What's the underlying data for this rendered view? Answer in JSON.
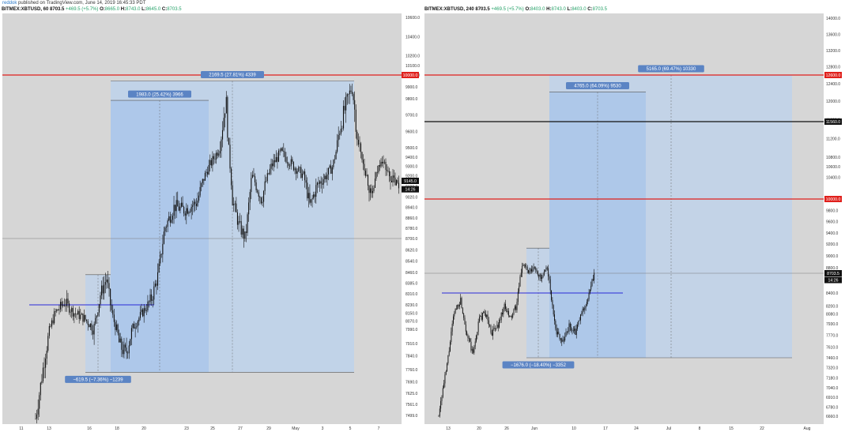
{
  "header": {
    "user": "reddok",
    "published": "published on TradingView.com, June 14, 2019 16:45:33 PDT"
  },
  "colors": {
    "chart_bg": "#d6d6d6",
    "candle": "#111111",
    "box_fill": "#bad2ee",
    "red_line": "#e0201c",
    "blue_line": "#2a2ad8",
    "label_bg": "#5b84c4",
    "black_line": "#111111",
    "gray_line": "#7a7a7a",
    "up_text": "#26a269"
  },
  "chart_data": [
    {
      "type": "line",
      "symbol": "BITMEX:XBTUSD, 60",
      "legend": {
        "symbol": "BITMEX:XBTUSD, 60",
        "last": "8703.5",
        "change": "+469.5 (+5.7%)",
        "o_label": "O:",
        "o": "8665.0",
        "h_label": "H:",
        "h": "8743.0",
        "l_label": "L:",
        "l": "8645.0",
        "c_label": "C:",
        "c": "8703.5"
      },
      "y_ticks": [
        "10600.0",
        "10400.0",
        "10200.0",
        "10100.0",
        "10000.0",
        "9900.0",
        "9800.0",
        "9700.0",
        "9600.0",
        "9500.0",
        "9400.0",
        "9300.0",
        "9200.0",
        "9100.0",
        "9020.0",
        "8940.0",
        "8860.0",
        "8780.0",
        "8700.0",
        "8620.0",
        "8540.0",
        "8460.0",
        "8385.0",
        "8310.0",
        "8230.0",
        "8150.0",
        "8070.0",
        "7990.0",
        "7910.0",
        "7840.0",
        "7760.0",
        "7690.0",
        "7625.0",
        "7561.0",
        "7499.0"
      ],
      "x_ticks": [
        "11",
        "13",
        "16",
        "18",
        "20",
        "23",
        "25",
        "27",
        "29",
        "May",
        "3",
        "5",
        "7"
      ],
      "price_badges": [
        {
          "text": "10000.0",
          "color": "#e0201c",
          "y": 10000
        },
        {
          "text": "9145.0",
          "color": "#111111",
          "y": 9145
        },
        {
          "text": "14:26",
          "color": "#111111",
          "y": 9080
        }
      ],
      "measure_labels": [
        {
          "text": "2169.5 (27.81%) 4339"
        },
        {
          "text": "1983.0 (25.42%) 3966"
        },
        {
          "text": "−619.5 (−7.36%) −1239"
        }
      ],
      "levels": {
        "red": 10000,
        "gray": 8700,
        "blue": 8230
      }
    },
    {
      "type": "line",
      "symbol": "BITMEX:XBTUSD, 240",
      "legend": {
        "symbol": "BITMEX:XBTUSD, 240",
        "last": "8703.5",
        "change": "+469.5 (+5.7%)",
        "o_label": "O:",
        "o": "8403.0",
        "h_label": "H:",
        "h": "8743.0",
        "l_label": "L:",
        "l": "8403.0",
        "c_label": "C:",
        "c": "8703.5"
      },
      "y_ticks": [
        "14000.0",
        "13600.0",
        "13200.0",
        "12800.0",
        "12400.0",
        "12000.0",
        "11600.0",
        "11200.0",
        "10800.0",
        "10600.0",
        "10400.0",
        "10000.0",
        "9800.0",
        "9600.0",
        "9400.0",
        "9200.0",
        "9000.0",
        "8800.0",
        "8600.0",
        "8400.0",
        "8200.0",
        "8080.0",
        "7930.0",
        "7770.0",
        "7610.0",
        "7460.0",
        "7320.0",
        "7180.0",
        "7040.0",
        "6910.0",
        "6780.0",
        "6660.0"
      ],
      "x_ticks": [
        "13",
        "20",
        "26",
        "Jun",
        "10",
        "17",
        "24",
        "Jul",
        "8",
        "15",
        "22",
        "Aug"
      ],
      "price_badges": [
        {
          "text": "12600.0",
          "color": "#e0201c",
          "y": 12600
        },
        {
          "text": "11560.0",
          "color": "#111111",
          "y": 11560
        },
        {
          "text": "10000.0",
          "color": "#e0201c",
          "y": 10000
        },
        {
          "text": "8703.5",
          "color": "#111111",
          "y": 8703.5
        },
        {
          "text": "14:26",
          "color": "#111111",
          "y": 8600
        }
      ],
      "measure_labels": [
        {
          "text": "5165.0 (69.47%) 10330"
        },
        {
          "text": "4765.0 (64.09%) 9530"
        },
        {
          "text": "−1676.0 (−18.40%) −3352"
        }
      ],
      "levels": {
        "red_top": 12600,
        "black": 11560,
        "red_mid": 10000,
        "gray": 8703.5,
        "blue": 8400
      }
    }
  ]
}
